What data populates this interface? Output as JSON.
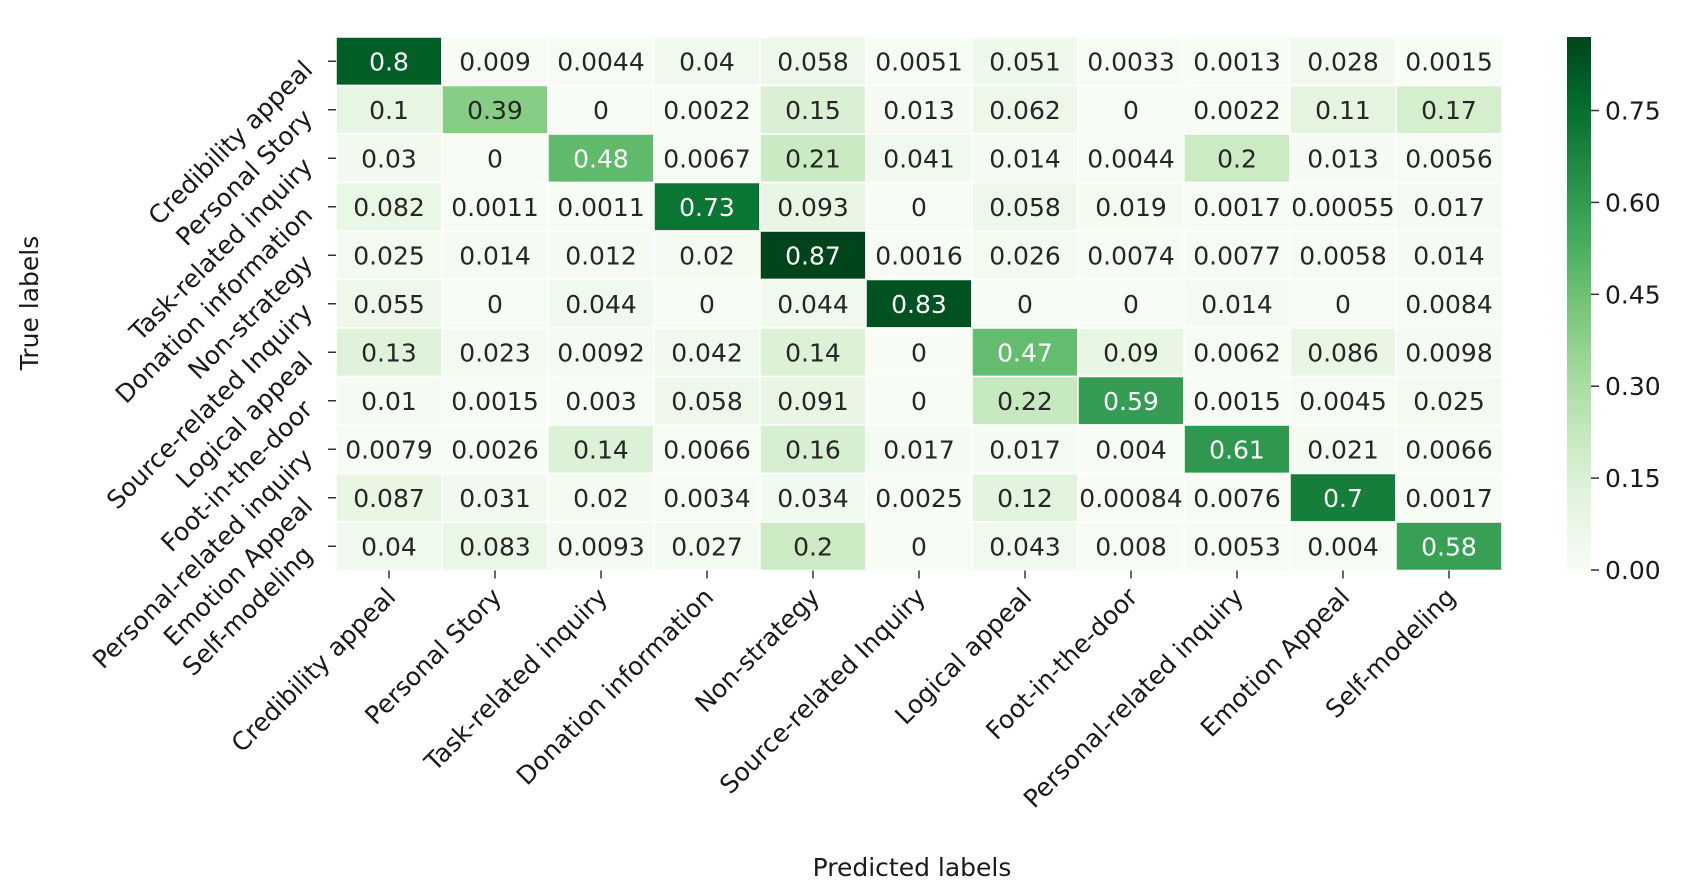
{
  "chart_data": {
    "type": "heatmap",
    "title": "",
    "xlabel": "Predicted labels",
    "ylabel": "True labels",
    "x_categories": [
      "Credibility appeal",
      "Personal Story",
      "Task-related inquiry",
      "Donation information",
      "Non-strategy",
      "Source-related Inquiry",
      "Logical appeal",
      "Foot-in-the-door",
      "Personal-related inquiry",
      "Emotion Appeal",
      "Self-modeling"
    ],
    "y_categories": [
      "Credibility appeal",
      "Personal Story",
      "Task-related inquiry",
      "Donation information",
      "Non-strategy",
      "Source-related Inquiry",
      "Logical appeal",
      "Foot-in-the-door",
      "Personal-related inquiry",
      "Emotion Appeal",
      "Self-modeling"
    ],
    "values": [
      [
        0.8,
        0.009,
        0.0044,
        0.04,
        0.058,
        0.0051,
        0.051,
        0.0033,
        0.0013,
        0.028,
        0.0015
      ],
      [
        0.1,
        0.39,
        0,
        0.0022,
        0.15,
        0.013,
        0.062,
        0,
        0.0022,
        0.11,
        0.17
      ],
      [
        0.03,
        0,
        0.48,
        0.0067,
        0.21,
        0.041,
        0.014,
        0.0044,
        0.2,
        0.013,
        0.0056
      ],
      [
        0.082,
        0.0011,
        0.0011,
        0.73,
        0.093,
        0,
        0.058,
        0.019,
        0.0017,
        0.00055,
        0.017
      ],
      [
        0.025,
        0.014,
        0.012,
        0.02,
        0.87,
        0.0016,
        0.026,
        0.0074,
        0.0077,
        0.0058,
        0.014
      ],
      [
        0.055,
        0,
        0.044,
        0,
        0.044,
        0.83,
        0,
        0,
        0.014,
        0,
        0.0084
      ],
      [
        0.13,
        0.023,
        0.0092,
        0.042,
        0.14,
        0,
        0.47,
        0.09,
        0.0062,
        0.086,
        0.0098
      ],
      [
        0.01,
        0.0015,
        0.003,
        0.058,
        0.091,
        0,
        0.22,
        0.59,
        0.0015,
        0.0045,
        0.025
      ],
      [
        0.0079,
        0.0026,
        0.14,
        0.0066,
        0.16,
        0.017,
        0.017,
        0.004,
        0.61,
        0.021,
        0.0066
      ],
      [
        0.087,
        0.031,
        0.02,
        0.0034,
        0.034,
        0.0025,
        0.12,
        0.00084,
        0.0076,
        0.7,
        0.0017
      ],
      [
        0.04,
        0.083,
        0.0093,
        0.027,
        0.2,
        0,
        0.043,
        0.008,
        0.0053,
        0.004,
        0.58
      ]
    ],
    "colormap": "Greens",
    "value_range": [
      0,
      0.87
    ],
    "colorbar": {
      "ticks": [
        0.0,
        0.15,
        0.3,
        0.45,
        0.6,
        0.75
      ],
      "tick_labels": [
        "0.00",
        "0.15",
        "0.30",
        "0.45",
        "0.60",
        "0.75"
      ]
    },
    "annotate_cells": true,
    "colors": {
      "light_text": "#ffffff",
      "dark_text": "#262626",
      "gridline": "#ffffff"
    }
  }
}
